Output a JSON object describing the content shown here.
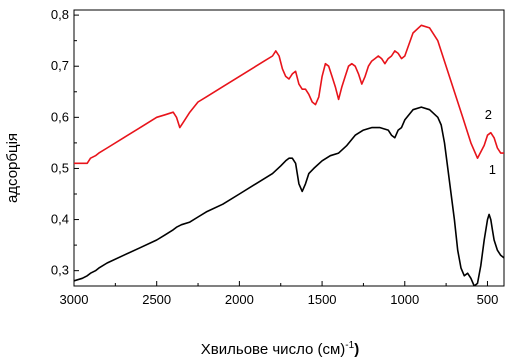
{
  "chart_data": {
    "type": "line",
    "xlabel": "Хвильове число (см)",
    "xlabel_sup": "-1",
    "xlabel_tail": ")",
    "ylabel": "адсорбція",
    "xlim": [
      3000,
      400
    ],
    "ylim": [
      0.27,
      0.81
    ],
    "x_ticks": [
      3000,
      2500,
      2000,
      1500,
      1000,
      500
    ],
    "x_tick_labels": [
      "3000",
      "2500",
      "2000",
      "1500",
      "1000",
      "500"
    ],
    "y_ticks": [
      0.3,
      0.4,
      0.5,
      0.6,
      0.7,
      0.8
    ],
    "y_tick_labels": [
      "0,3",
      "0,4",
      "0,5",
      "0,6",
      "0,7",
      "0,8"
    ],
    "grid": false,
    "series": [
      {
        "label": "2",
        "color": "#e8141b",
        "x": [
          3000,
          2950,
          2920,
          2900,
          2870,
          2850,
          2800,
          2700,
          2600,
          2500,
          2450,
          2400,
          2380,
          2360,
          2340,
          2300,
          2250,
          2200,
          2100,
          2000,
          1900,
          1850,
          1800,
          1780,
          1760,
          1740,
          1720,
          1700,
          1680,
          1660,
          1640,
          1620,
          1600,
          1580,
          1560,
          1540,
          1520,
          1500,
          1480,
          1460,
          1440,
          1420,
          1400,
          1380,
          1360,
          1340,
          1320,
          1300,
          1280,
          1260,
          1240,
          1220,
          1200,
          1180,
          1160,
          1140,
          1120,
          1100,
          1080,
          1060,
          1040,
          1020,
          1000,
          950,
          900,
          850,
          800,
          750,
          700,
          650,
          600,
          560,
          520,
          500,
          480,
          460,
          440,
          420,
          400
        ],
        "y": [
          0.51,
          0.51,
          0.51,
          0.52,
          0.525,
          0.53,
          0.54,
          0.56,
          0.58,
          0.6,
          0.605,
          0.61,
          0.6,
          0.58,
          0.59,
          0.61,
          0.63,
          0.64,
          0.66,
          0.68,
          0.7,
          0.71,
          0.72,
          0.73,
          0.72,
          0.695,
          0.68,
          0.675,
          0.685,
          0.69,
          0.665,
          0.655,
          0.655,
          0.645,
          0.63,
          0.625,
          0.64,
          0.68,
          0.705,
          0.7,
          0.68,
          0.66,
          0.635,
          0.66,
          0.68,
          0.7,
          0.705,
          0.7,
          0.685,
          0.665,
          0.68,
          0.7,
          0.71,
          0.715,
          0.72,
          0.715,
          0.705,
          0.715,
          0.72,
          0.73,
          0.725,
          0.715,
          0.72,
          0.765,
          0.78,
          0.775,
          0.75,
          0.7,
          0.65,
          0.6,
          0.55,
          0.52,
          0.545,
          0.565,
          0.57,
          0.56,
          0.54,
          0.53,
          0.53
        ]
      },
      {
        "label": "1",
        "color": "#000000",
        "x": [
          3000,
          2950,
          2920,
          2900,
          2870,
          2850,
          2800,
          2700,
          2600,
          2500,
          2450,
          2400,
          2380,
          2350,
          2300,
          2250,
          2200,
          2100,
          2000,
          1900,
          1850,
          1800,
          1750,
          1720,
          1700,
          1680,
          1660,
          1640,
          1620,
          1600,
          1580,
          1550,
          1500,
          1450,
          1400,
          1350,
          1300,
          1250,
          1200,
          1150,
          1100,
          1080,
          1060,
          1040,
          1020,
          1000,
          950,
          900,
          850,
          800,
          780,
          760,
          740,
          720,
          700,
          680,
          660,
          640,
          620,
          600,
          580,
          560,
          540,
          520,
          500,
          490,
          480,
          470,
          460,
          440,
          420,
          400
        ],
        "y": [
          0.28,
          0.285,
          0.29,
          0.295,
          0.3,
          0.305,
          0.315,
          0.33,
          0.345,
          0.36,
          0.37,
          0.38,
          0.385,
          0.39,
          0.395,
          0.405,
          0.415,
          0.43,
          0.45,
          0.47,
          0.48,
          0.49,
          0.505,
          0.515,
          0.52,
          0.52,
          0.51,
          0.47,
          0.455,
          0.47,
          0.49,
          0.5,
          0.515,
          0.525,
          0.53,
          0.545,
          0.565,
          0.575,
          0.58,
          0.58,
          0.575,
          0.565,
          0.56,
          0.575,
          0.58,
          0.595,
          0.615,
          0.62,
          0.615,
          0.6,
          0.585,
          0.55,
          0.5,
          0.45,
          0.4,
          0.34,
          0.305,
          0.29,
          0.295,
          0.285,
          0.27,
          0.275,
          0.31,
          0.36,
          0.4,
          0.41,
          0.4,
          0.38,
          0.36,
          0.34,
          0.33,
          0.325
        ]
      }
    ]
  }
}
